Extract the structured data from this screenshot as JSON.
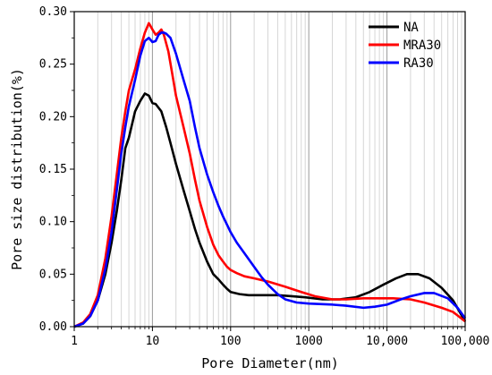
{
  "chart_data": {
    "type": "line",
    "xlabel": "Pore Diameter(nm)",
    "ylabel": "Pore size distribution(%)",
    "xscale": "log",
    "xlim": [
      1,
      100000
    ],
    "ylim": [
      0,
      0.3
    ],
    "x_ticks": [
      {
        "value": 1,
        "label": "1"
      },
      {
        "value": 10,
        "label": "10"
      },
      {
        "value": 100,
        "label": "100"
      },
      {
        "value": 1000,
        "label": "1000"
      },
      {
        "value": 10000,
        "label": "10,000"
      },
      {
        "value": 100000,
        "label": "100,000"
      }
    ],
    "y_ticks": [
      {
        "value": 0.0,
        "label": "0.00"
      },
      {
        "value": 0.05,
        "label": "0.05"
      },
      {
        "value": 0.1,
        "label": "0.10"
      },
      {
        "value": 0.15,
        "label": "0.15"
      },
      {
        "value": 0.2,
        "label": "0.20"
      },
      {
        "value": 0.25,
        "label": "0.25"
      },
      {
        "value": 0.3,
        "label": "0.30"
      }
    ],
    "grid": "vertical minor log lines",
    "legend_position": "top-right",
    "series": [
      {
        "name": "NA",
        "color": "#000000",
        "points": [
          [
            1,
            0.0
          ],
          [
            1.3,
            0.003
          ],
          [
            1.6,
            0.01
          ],
          [
            2,
            0.025
          ],
          [
            2.5,
            0.05
          ],
          [
            3,
            0.08
          ],
          [
            3.5,
            0.11
          ],
          [
            4,
            0.14
          ],
          [
            4.5,
            0.17
          ],
          [
            5,
            0.18
          ],
          [
            6,
            0.205
          ],
          [
            7,
            0.215
          ],
          [
            8,
            0.222
          ],
          [
            9,
            0.22
          ],
          [
            10,
            0.213
          ],
          [
            11,
            0.212
          ],
          [
            13,
            0.205
          ],
          [
            15,
            0.19
          ],
          [
            17,
            0.175
          ],
          [
            20,
            0.155
          ],
          [
            25,
            0.13
          ],
          [
            30,
            0.11
          ],
          [
            35,
            0.093
          ],
          [
            40,
            0.08
          ],
          [
            50,
            0.062
          ],
          [
            60,
            0.05
          ],
          [
            70,
            0.045
          ],
          [
            80,
            0.04
          ],
          [
            90,
            0.036
          ],
          [
            100,
            0.033
          ],
          [
            130,
            0.031
          ],
          [
            170,
            0.03
          ],
          [
            250,
            0.03
          ],
          [
            400,
            0.03
          ],
          [
            600,
            0.029
          ],
          [
            900,
            0.028
          ],
          [
            1500,
            0.026
          ],
          [
            2500,
            0.026
          ],
          [
            4000,
            0.028
          ],
          [
            6000,
            0.033
          ],
          [
            9000,
            0.04
          ],
          [
            13000,
            0.046
          ],
          [
            18000,
            0.05
          ],
          [
            25000,
            0.05
          ],
          [
            35000,
            0.046
          ],
          [
            50000,
            0.037
          ],
          [
            70000,
            0.025
          ],
          [
            100000,
            0.005
          ]
        ]
      },
      {
        "name": "MRA30",
        "color": "#ff0000",
        "points": [
          [
            1,
            0.0
          ],
          [
            1.3,
            0.004
          ],
          [
            1.6,
            0.012
          ],
          [
            2,
            0.03
          ],
          [
            2.5,
            0.065
          ],
          [
            3,
            0.105
          ],
          [
            3.5,
            0.145
          ],
          [
            4,
            0.18
          ],
          [
            4.5,
            0.205
          ],
          [
            5,
            0.225
          ],
          [
            6,
            0.245
          ],
          [
            7,
            0.265
          ],
          [
            8,
            0.28
          ],
          [
            9,
            0.289
          ],
          [
            10,
            0.283
          ],
          [
            11,
            0.278
          ],
          [
            12,
            0.28
          ],
          [
            13,
            0.283
          ],
          [
            14,
            0.278
          ],
          [
            16,
            0.262
          ],
          [
            18,
            0.24
          ],
          [
            20,
            0.22
          ],
          [
            25,
            0.19
          ],
          [
            30,
            0.165
          ],
          [
            35,
            0.14
          ],
          [
            40,
            0.12
          ],
          [
            50,
            0.095
          ],
          [
            60,
            0.078
          ],
          [
            70,
            0.068
          ],
          [
            80,
            0.062
          ],
          [
            90,
            0.057
          ],
          [
            100,
            0.054
          ],
          [
            120,
            0.051
          ],
          [
            150,
            0.048
          ],
          [
            200,
            0.046
          ],
          [
            300,
            0.043
          ],
          [
            500,
            0.038
          ],
          [
            800,
            0.033
          ],
          [
            1200,
            0.029
          ],
          [
            2000,
            0.026
          ],
          [
            3000,
            0.026
          ],
          [
            5000,
            0.027
          ],
          [
            8000,
            0.027
          ],
          [
            12000,
            0.027
          ],
          [
            20000,
            0.026
          ],
          [
            30000,
            0.023
          ],
          [
            50000,
            0.018
          ],
          [
            70000,
            0.014
          ],
          [
            100000,
            0.005
          ]
        ]
      },
      {
        "name": "RA30",
        "color": "#0000ff",
        "points": [
          [
            1,
            0.0
          ],
          [
            1.3,
            0.003
          ],
          [
            1.6,
            0.01
          ],
          [
            2,
            0.025
          ],
          [
            2.5,
            0.055
          ],
          [
            3,
            0.09
          ],
          [
            3.5,
            0.13
          ],
          [
            4,
            0.165
          ],
          [
            4.5,
            0.19
          ],
          [
            5,
            0.21
          ],
          [
            6,
            0.235
          ],
          [
            7,
            0.258
          ],
          [
            8,
            0.272
          ],
          [
            9,
            0.275
          ],
          [
            10,
            0.271
          ],
          [
            11,
            0.272
          ],
          [
            12,
            0.278
          ],
          [
            13,
            0.28
          ],
          [
            14,
            0.28
          ],
          [
            15,
            0.279
          ],
          [
            17,
            0.275
          ],
          [
            20,
            0.26
          ],
          [
            25,
            0.235
          ],
          [
            30,
            0.215
          ],
          [
            35,
            0.19
          ],
          [
            40,
            0.17
          ],
          [
            50,
            0.145
          ],
          [
            60,
            0.128
          ],
          [
            70,
            0.115
          ],
          [
            80,
            0.105
          ],
          [
            100,
            0.09
          ],
          [
            120,
            0.08
          ],
          [
            150,
            0.07
          ],
          [
            200,
            0.057
          ],
          [
            250,
            0.047
          ],
          [
            300,
            0.04
          ],
          [
            400,
            0.031
          ],
          [
            500,
            0.026
          ],
          [
            700,
            0.023
          ],
          [
            1000,
            0.022
          ],
          [
            2000,
            0.021
          ],
          [
            3000,
            0.02
          ],
          [
            5000,
            0.018
          ],
          [
            7000,
            0.019
          ],
          [
            10000,
            0.021
          ],
          [
            15000,
            0.026
          ],
          [
            20000,
            0.029
          ],
          [
            30000,
            0.032
          ],
          [
            40000,
            0.032
          ],
          [
            60000,
            0.027
          ],
          [
            80000,
            0.018
          ],
          [
            100000,
            0.008
          ]
        ]
      }
    ]
  }
}
